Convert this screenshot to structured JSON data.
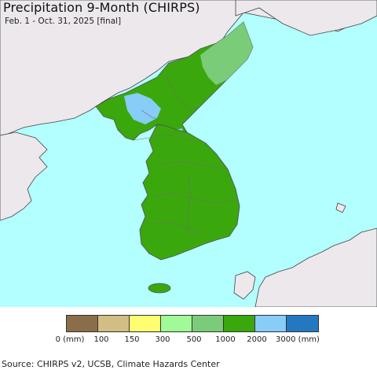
{
  "title": "Precipitation 9-Month (CHIRPS)",
  "subtitle": "Feb. 1 - Oct. 31, 2025 [final]",
  "source": "Source: CHIRPS v2, UCSB, Climate Hazards Center",
  "colors": {
    "sea": "#b3ffff",
    "foreign_land": "#ece8ec",
    "region_main": "#3aa80c",
    "region_northeast": "#7bcc78",
    "region_wet": "#88ccf8",
    "borders": "#666666"
  },
  "legend": {
    "swatch_colors": [
      "#8a6e4a",
      "#d2be84",
      "#fefe70",
      "#a0fa98",
      "#7bcc78",
      "#3aa80c",
      "#88ccf8",
      "#2478c0"
    ],
    "labels": [
      "0 (mm)",
      "100",
      "150",
      "300",
      "500",
      "1000",
      "2000",
      "3000 (mm)"
    ]
  }
}
